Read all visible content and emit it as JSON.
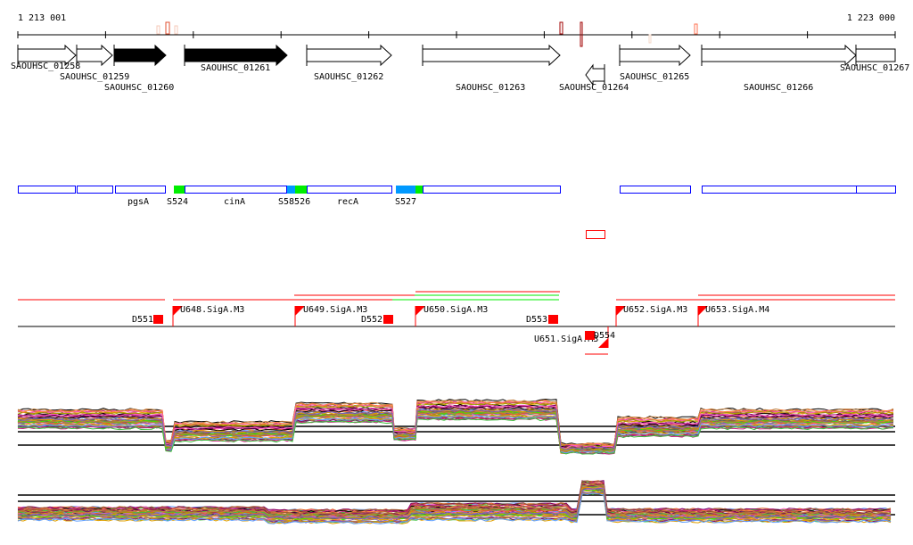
{
  "ruler": {
    "start_label": "1 213 001",
    "end_label": "1 223 000"
  },
  "genes": [
    {
      "name": "SAOUHSC_01258",
      "strand": "+",
      "fill": "#ffffff"
    },
    {
      "name": "SAOUHSC_01259",
      "strand": "+",
      "fill": "#ffffff"
    },
    {
      "name": "SAOUHSC_01260",
      "strand": "+",
      "fill": "#000000"
    },
    {
      "name": "SAOUHSC_01261",
      "strand": "+",
      "fill": "#000000"
    },
    {
      "name": "SAOUHSC_01262",
      "strand": "+",
      "fill": "#ffffff"
    },
    {
      "name": "SAOUHSC_01263",
      "strand": "+",
      "fill": "#ffffff"
    },
    {
      "name": "SAOUHSC_01264",
      "strand": "-",
      "fill": "#ffffff"
    },
    {
      "name": "SAOUHSC_01265",
      "strand": "+",
      "fill": "#ffffff"
    },
    {
      "name": "SAOUHSC_01266",
      "strand": "+",
      "fill": "#ffffff"
    },
    {
      "name": "SAOUHSC_01267",
      "strand": "+",
      "fill": "#ffffff"
    }
  ],
  "features": {
    "labels": [
      "pgsA",
      "S524",
      "cinA",
      "S58526",
      "recA",
      "S527"
    ],
    "colors": {
      "box": "#0000ff",
      "green": "#00ee00",
      "blue": "#0099ff",
      "red": "#ff0000"
    }
  },
  "transcripts": {
    "up": [
      "U648.SigA.M3",
      "U649.SigA.M3",
      "U650.SigA.M3",
      "U651.SigA.M3",
      "U652.SigA.M3",
      "U653.SigA.M4"
    ],
    "down": [
      "D551",
      "D552",
      "D553",
      "D554"
    ]
  }
}
